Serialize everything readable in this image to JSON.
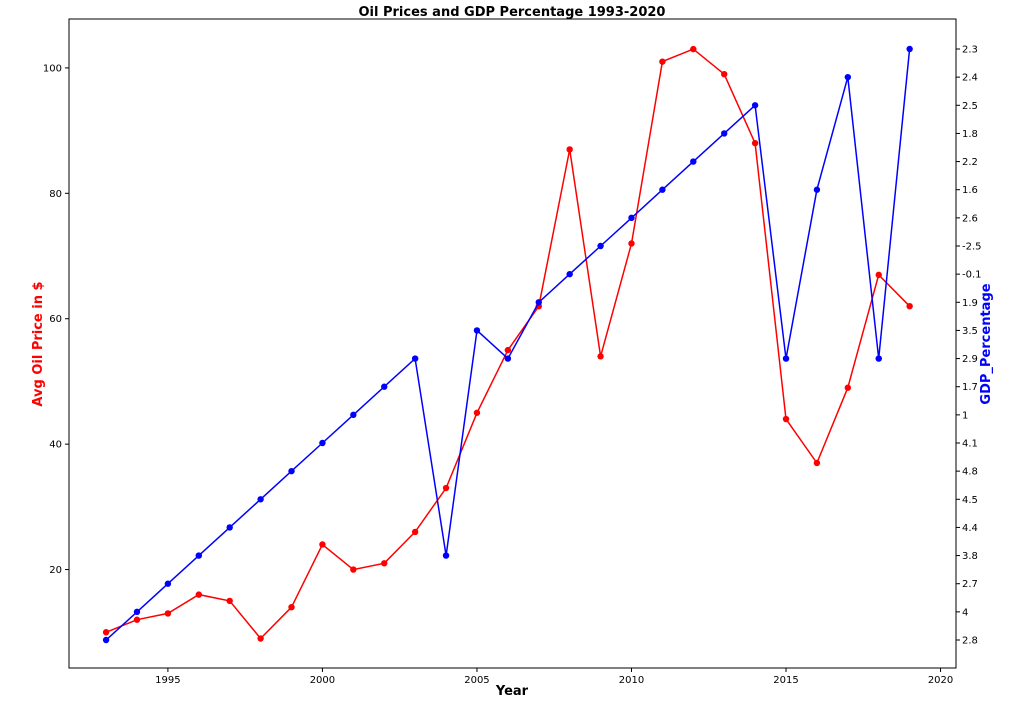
{
  "chart_data": {
    "type": "line",
    "title": "Oil Prices and GDP Percentage 1993-2020",
    "xlabel": "Year",
    "ylabel_left": "Avg Oil Price in $",
    "ylabel_right": "GDP_Percentage",
    "xlim": [
      1991.8,
      2020.5
    ],
    "ylim_left": [
      4.3,
      107.8
    ],
    "x_ticks": [
      1995,
      2000,
      2005,
      2010,
      2015,
      2020
    ],
    "y_ticks_left": [
      20,
      40,
      60,
      80,
      100
    ],
    "y_categories_right": [
      "2.8",
      "4",
      "2.7",
      "3.8",
      "4.4",
      "4.5",
      "4.8",
      "4.1",
      "1",
      "1.7",
      "2.9",
      "3.5",
      "1.9",
      "-0.1",
      "-2.5",
      "2.6",
      "1.6",
      "2.2",
      "1.8",
      "2.5",
      "2.4",
      "2.3"
    ],
    "grid": false,
    "colors": {
      "oil": "#ff0000",
      "gdp": "#0000ff"
    },
    "x": [
      1993,
      1994,
      1995,
      1996,
      1997,
      1998,
      1999,
      2000,
      2001,
      2002,
      2003,
      2004,
      2005,
      2006,
      2007,
      2008,
      2009,
      2010,
      2011,
      2012,
      2013,
      2014,
      2015,
      2016,
      2017,
      2018,
      2019
    ],
    "series": [
      {
        "axis": "left",
        "color": "#ff0000",
        "values": [
          10,
          12,
          13,
          16,
          15,
          9,
          14,
          24,
          20,
          21,
          26,
          33,
          45,
          55,
          62,
          87,
          54,
          72,
          101,
          103,
          99,
          88,
          44,
          37,
          49,
          67,
          62
        ]
      },
      {
        "axis": "right",
        "color": "#0000ff",
        "values": [
          "2.8",
          "4",
          "2.7",
          "3.8",
          "4.4",
          "4.5",
          "4.8",
          "4.1",
          "1",
          "1.7",
          "2.9",
          "3.8",
          "3.5",
          "2.9",
          "1.9",
          "-0.1",
          "-2.5",
          "2.6",
          "1.6",
          "2.2",
          "1.8",
          "2.5",
          "2.9",
          "1.6",
          "2.4",
          "2.9",
          "2.3"
        ]
      }
    ]
  }
}
